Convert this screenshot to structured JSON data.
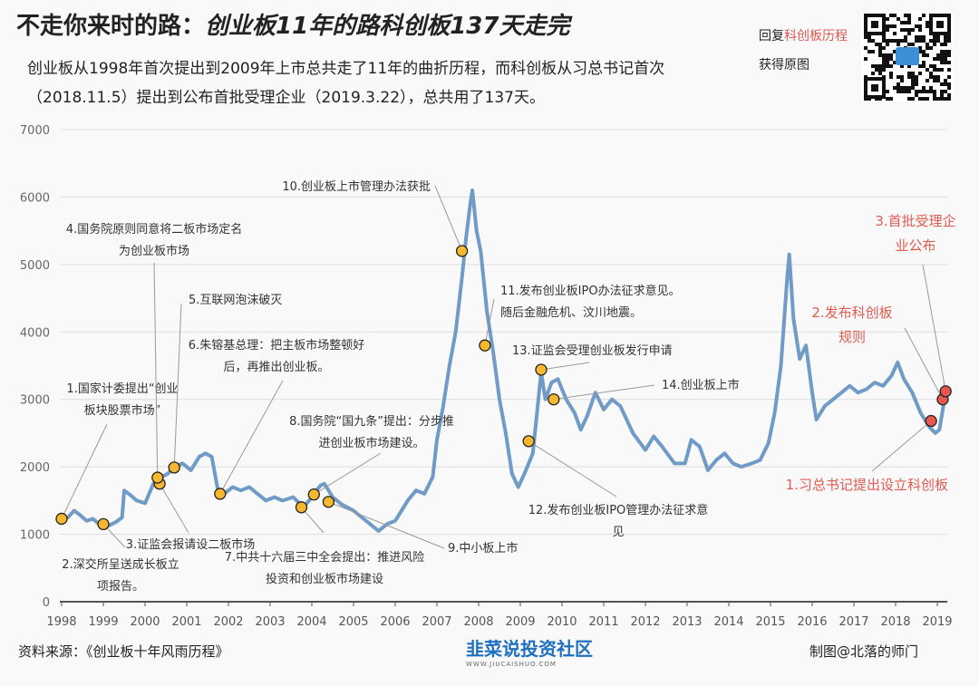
{
  "header": {
    "title_part1": "不走你来时的路：",
    "title_part2": "创业板11年的路科创板137天走完",
    "subtitle": "创业板从1998年首次提出到2009年上市总共走了11年的曲折历程，而科创板从习总书记首次（2018.11.5）提出到公布首批受理企业（2019.3.22），总共用了137天。",
    "reply_prefix": "回复",
    "reply_keyword": "科创板历程",
    "reply_suffix": "获得原图"
  },
  "footer": {
    "source": "资料来源：《创业板十年风雨历程》",
    "logo": "韭菜说投资社区",
    "logo_url_text": "WWW.JIUCAISHUO.COM",
    "credit": "制图@北落的师门"
  },
  "colors": {
    "line": "#6f9bc6",
    "event_yellow": "#f5b82e",
    "event_red": "#e8574f",
    "red_text": "#e05a50",
    "grid": "#dddddd"
  },
  "chart_data": {
    "type": "line",
    "title": "",
    "xlabel": "",
    "ylabel": "",
    "xlim": [
      1998,
      2019.3
    ],
    "ylim": [
      0,
      7000
    ],
    "yticks": [
      0,
      1000,
      2000,
      3000,
      4000,
      5000,
      6000,
      7000
    ],
    "xticks": [
      "1998",
      "1999",
      "2000",
      "2001",
      "2002",
      "2003",
      "2004",
      "2005",
      "2006",
      "2007",
      "2008",
      "2009",
      "2010",
      "2011",
      "2012",
      "2013",
      "2014",
      "2015",
      "2016",
      "2017",
      "2018",
      "2019"
    ],
    "grid": "horizontal",
    "series": [
      {
        "x": [
          1998.0,
          1998.15,
          1998.3,
          1998.45,
          1998.6,
          1998.75,
          1998.9,
          1999.1,
          1999.3,
          1999.45,
          1999.5,
          1999.65,
          1999.8,
          2000.0,
          2000.2,
          2000.4,
          2000.55,
          2000.7,
          2000.9,
          2001.1,
          2001.3,
          2001.45,
          2001.6,
          2001.75,
          2001.9,
          2002.1,
          2002.3,
          2002.5,
          2002.7,
          2002.9,
          2003.1,
          2003.3,
          2003.55,
          2003.8,
          2004.0,
          2004.2,
          2004.3,
          2004.5,
          2004.7,
          2005.0,
          2005.2,
          2005.4,
          2005.6,
          2005.8,
          2006.0,
          2006.3,
          2006.5,
          2006.7,
          2006.9,
          2007.0,
          2007.15,
          2007.3,
          2007.45,
          2007.6,
          2007.7,
          2007.8,
          2007.85,
          2007.95,
          2008.05,
          2008.2,
          2008.35,
          2008.5,
          2008.65,
          2008.8,
          2008.95,
          2009.1,
          2009.3,
          2009.5,
          2009.6,
          2009.75,
          2009.9,
          2010.1,
          2010.3,
          2010.45,
          2010.6,
          2010.8,
          2011.0,
          2011.2,
          2011.4,
          2011.7,
          2012.0,
          2012.2,
          2012.4,
          2012.7,
          2012.95,
          2013.1,
          2013.3,
          2013.5,
          2013.7,
          2013.9,
          2014.1,
          2014.3,
          2014.55,
          2014.75,
          2014.95,
          2015.1,
          2015.25,
          2015.4,
          2015.45,
          2015.55,
          2015.7,
          2015.85,
          2016.0,
          2016.1,
          2016.3,
          2016.5,
          2016.7,
          2016.9,
          2017.1,
          2017.3,
          2017.5,
          2017.7,
          2017.9,
          2018.05,
          2018.2,
          2018.4,
          2018.6,
          2018.8,
          2018.95,
          2019.05,
          2019.2
        ],
        "values": [
          1200,
          1250,
          1350,
          1280,
          1200,
          1230,
          1150,
          1120,
          1180,
          1250,
          1650,
          1580,
          1500,
          1460,
          1750,
          1850,
          1900,
          2000,
          2050,
          1950,
          2150,
          2200,
          2150,
          1650,
          1600,
          1700,
          1650,
          1700,
          1600,
          1500,
          1550,
          1500,
          1550,
          1400,
          1550,
          1720,
          1750,
          1550,
          1450,
          1350,
          1250,
          1150,
          1050,
          1150,
          1200,
          1500,
          1650,
          1600,
          1850,
          2400,
          2900,
          3500,
          4000,
          4800,
          5400,
          5900,
          6100,
          5500,
          5200,
          4300,
          3700,
          3000,
          2500,
          1900,
          1700,
          1900,
          2200,
          3400,
          3000,
          3250,
          3300,
          3000,
          2800,
          2550,
          2750,
          3100,
          2850,
          3000,
          2900,
          2500,
          2250,
          2450,
          2300,
          2050,
          2050,
          2400,
          2300,
          1950,
          2100,
          2200,
          2050,
          2000,
          2050,
          2100,
          2350,
          2800,
          3500,
          4800,
          5150,
          4200,
          3600,
          3800,
          3100,
          2700,
          2900,
          3000,
          3100,
          3200,
          3100,
          3150,
          3250,
          3200,
          3350,
          3550,
          3300,
          3100,
          2800,
          2600,
          2500,
          2550,
          3100
        ]
      }
    ],
    "events": [
      {
        "id": "1",
        "lines": [
          "1.国家计委提出“创业",
          "板块股票市场”"
        ],
        "x": 1998.0,
        "y": 1230,
        "color": "yellow"
      },
      {
        "id": "2",
        "lines": [
          "2.深交所呈送成长板立",
          "项报告。"
        ],
        "x": 1999.0,
        "y": 1150,
        "color": "yellow"
      },
      {
        "id": "3",
        "lines": [
          "3.证监会报请设二板市场"
        ],
        "x": 2000.35,
        "y": 1750,
        "color": "yellow"
      },
      {
        "id": "4",
        "lines": [
          "4.国务院原则同意将二板市场定名",
          "为创业板市场"
        ],
        "x": 2000.3,
        "y": 1840,
        "color": "yellow"
      },
      {
        "id": "5",
        "lines": [
          "5.互联网泡沫破灭"
        ],
        "x": 2000.7,
        "y": 1990,
        "color": "yellow"
      },
      {
        "id": "6",
        "lines": [
          "6.朱镕基总理：把主板市场整顿好",
          "后，再推出创业板。"
        ],
        "x": 2001.8,
        "y": 1600,
        "color": "yellow"
      },
      {
        "id": "7",
        "lines": [
          "7.中共十六届三中全会提出：推进风险",
          "投资和创业板市场建设"
        ],
        "x": 2003.75,
        "y": 1400,
        "color": "yellow"
      },
      {
        "id": "8",
        "lines": [
          "8.国务院“国九条”提出：分步推",
          "进创业板市场建设。"
        ],
        "x": 2004.05,
        "y": 1590,
        "color": "yellow"
      },
      {
        "id": "9",
        "lines": [
          "9.中小板上市"
        ],
        "x": 2004.4,
        "y": 1480,
        "color": "yellow"
      },
      {
        "id": "10",
        "lines": [
          "10.创业板上市管理办法获批"
        ],
        "x": 2007.6,
        "y": 5200,
        "color": "yellow"
      },
      {
        "id": "11",
        "lines": [
          "11.发布创业板IPO办法征求意见。",
          "随后金融危机、汶川地震。"
        ],
        "x": 2008.15,
        "y": 3800,
        "color": "yellow"
      },
      {
        "id": "12",
        "lines": [
          "12.发布创业板IPO管理办法征求意",
          "见"
        ],
        "x": 2009.2,
        "y": 2380,
        "color": "yellow"
      },
      {
        "id": "13",
        "lines": [
          "13.证监会受理创业板发行申请"
        ],
        "x": 2009.5,
        "y": 3440,
        "color": "yellow"
      },
      {
        "id": "14",
        "lines": [
          "14.创业板上市"
        ],
        "x": 2009.8,
        "y": 3000,
        "color": "yellow"
      },
      {
        "id": "r1",
        "lines": [
          "1.习总书记提出设立科创板"
        ],
        "x": 2018.85,
        "y": 2680,
        "color": "red"
      },
      {
        "id": "r2",
        "lines": [
          "2.发布科创板",
          "规则"
        ],
        "x": 2019.13,
        "y": 3000,
        "color": "red"
      },
      {
        "id": "r3",
        "lines": [
          "3.首批受理企",
          "业公布"
        ],
        "x": 2019.2,
        "y": 3120,
        "color": "red"
      }
    ]
  }
}
